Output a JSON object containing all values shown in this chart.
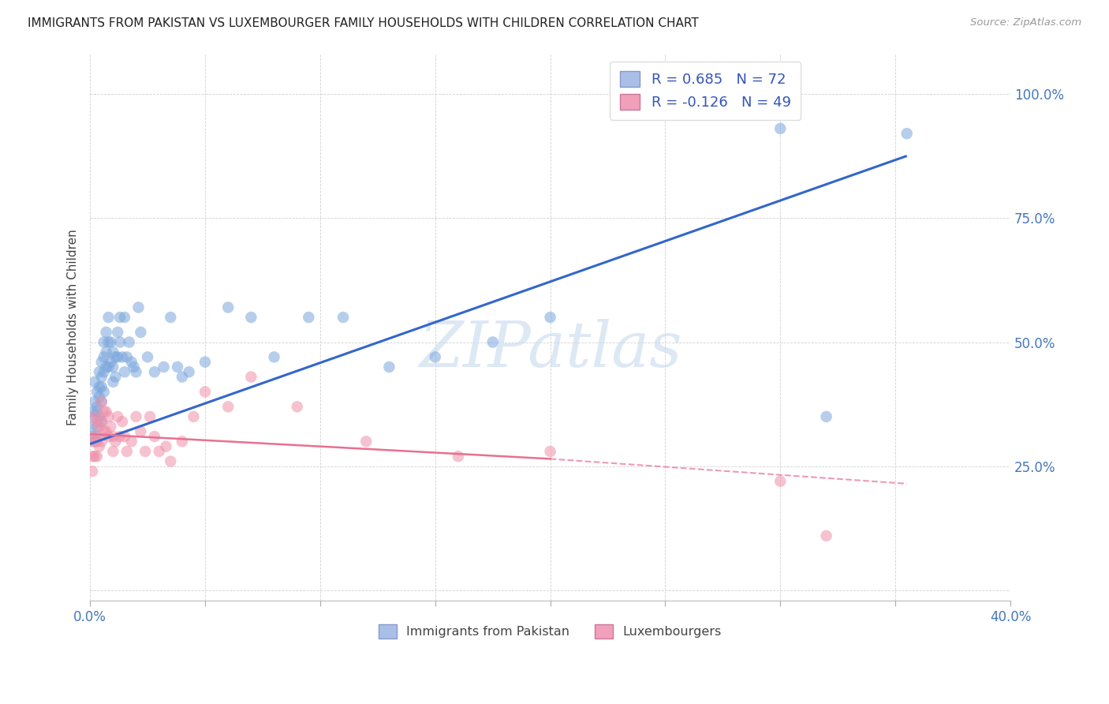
{
  "title": "IMMIGRANTS FROM PAKISTAN VS LUXEMBOURGER FAMILY HOUSEHOLDS WITH CHILDREN CORRELATION CHART",
  "source": "Source: ZipAtlas.com",
  "ylabel": "Family Households with Children",
  "watermark": "ZIPatlas",
  "legend_r1": "R =  0.685",
  "legend_n1": "N = 72",
  "legend_r2": "R = -0.126",
  "legend_n2": "N = 49",
  "legend_label1": "Immigrants from Pakistan",
  "legend_label2": "Luxembourgers",
  "blue_color": "#7ba7dc",
  "pink_color": "#f090aa",
  "blue_line_color": "#3366cc",
  "pink_line_color": "#e87090",
  "blue_scatter_x": [
    0.001,
    0.001,
    0.001,
    0.002,
    0.002,
    0.002,
    0.002,
    0.003,
    0.003,
    0.003,
    0.003,
    0.003,
    0.004,
    0.004,
    0.004,
    0.004,
    0.005,
    0.005,
    0.005,
    0.005,
    0.005,
    0.006,
    0.006,
    0.006,
    0.006,
    0.007,
    0.007,
    0.007,
    0.008,
    0.008,
    0.008,
    0.009,
    0.009,
    0.01,
    0.01,
    0.01,
    0.011,
    0.011,
    0.012,
    0.012,
    0.013,
    0.013,
    0.014,
    0.015,
    0.015,
    0.016,
    0.017,
    0.018,
    0.019,
    0.02,
    0.021,
    0.022,
    0.025,
    0.028,
    0.032,
    0.035,
    0.038,
    0.04,
    0.043,
    0.05,
    0.06,
    0.07,
    0.08,
    0.095,
    0.11,
    0.13,
    0.15,
    0.175,
    0.2,
    0.3,
    0.32,
    0.355
  ],
  "blue_scatter_y": [
    0.36,
    0.33,
    0.31,
    0.38,
    0.42,
    0.35,
    0.3,
    0.4,
    0.37,
    0.36,
    0.33,
    0.31,
    0.44,
    0.41,
    0.39,
    0.35,
    0.46,
    0.43,
    0.41,
    0.38,
    0.34,
    0.5,
    0.47,
    0.44,
    0.4,
    0.52,
    0.48,
    0.45,
    0.55,
    0.5,
    0.45,
    0.5,
    0.46,
    0.48,
    0.45,
    0.42,
    0.47,
    0.43,
    0.52,
    0.47,
    0.55,
    0.5,
    0.47,
    0.55,
    0.44,
    0.47,
    0.5,
    0.46,
    0.45,
    0.44,
    0.57,
    0.52,
    0.47,
    0.44,
    0.45,
    0.55,
    0.45,
    0.43,
    0.44,
    0.46,
    0.57,
    0.55,
    0.47,
    0.55,
    0.55,
    0.45,
    0.47,
    0.5,
    0.55,
    0.93,
    0.35,
    0.92
  ],
  "pink_scatter_x": [
    0.001,
    0.001,
    0.001,
    0.002,
    0.002,
    0.002,
    0.003,
    0.003,
    0.003,
    0.004,
    0.004,
    0.005,
    0.005,
    0.005,
    0.006,
    0.006,
    0.007,
    0.007,
    0.008,
    0.008,
    0.009,
    0.01,
    0.01,
    0.011,
    0.012,
    0.013,
    0.014,
    0.015,
    0.016,
    0.018,
    0.02,
    0.022,
    0.024,
    0.026,
    0.028,
    0.03,
    0.033,
    0.035,
    0.04,
    0.045,
    0.05,
    0.06,
    0.07,
    0.09,
    0.12,
    0.16,
    0.2,
    0.3,
    0.32
  ],
  "pink_scatter_y": [
    0.3,
    0.27,
    0.24,
    0.35,
    0.31,
    0.27,
    0.34,
    0.3,
    0.27,
    0.33,
    0.29,
    0.38,
    0.34,
    0.3,
    0.36,
    0.32,
    0.36,
    0.32,
    0.35,
    0.31,
    0.33,
    0.31,
    0.28,
    0.3,
    0.35,
    0.31,
    0.34,
    0.31,
    0.28,
    0.3,
    0.35,
    0.32,
    0.28,
    0.35,
    0.31,
    0.28,
    0.29,
    0.26,
    0.3,
    0.35,
    0.4,
    0.37,
    0.43,
    0.37,
    0.3,
    0.27,
    0.28,
    0.22,
    0.11
  ],
  "blue_line_x0": 0.0,
  "blue_line_x1": 0.355,
  "blue_line_y0": 0.295,
  "blue_line_y1": 0.875,
  "pink_line_x0": 0.0,
  "pink_line_x1": 0.355,
  "pink_line_y0": 0.315,
  "pink_line_y1": 0.215,
  "pink_line_solid_x1": 0.2,
  "pink_line_solid_y1": 0.265,
  "xmin": 0.0,
  "xmax": 0.4,
  "ymin": -0.02,
  "ymax": 1.08,
  "ytick_vals": [
    0.0,
    0.25,
    0.5,
    0.75,
    1.0
  ],
  "ytick_show": [
    false,
    true,
    true,
    true,
    true
  ],
  "xtick_vals": [
    0.0,
    0.05,
    0.1,
    0.15,
    0.2,
    0.25,
    0.3,
    0.35,
    0.4
  ]
}
